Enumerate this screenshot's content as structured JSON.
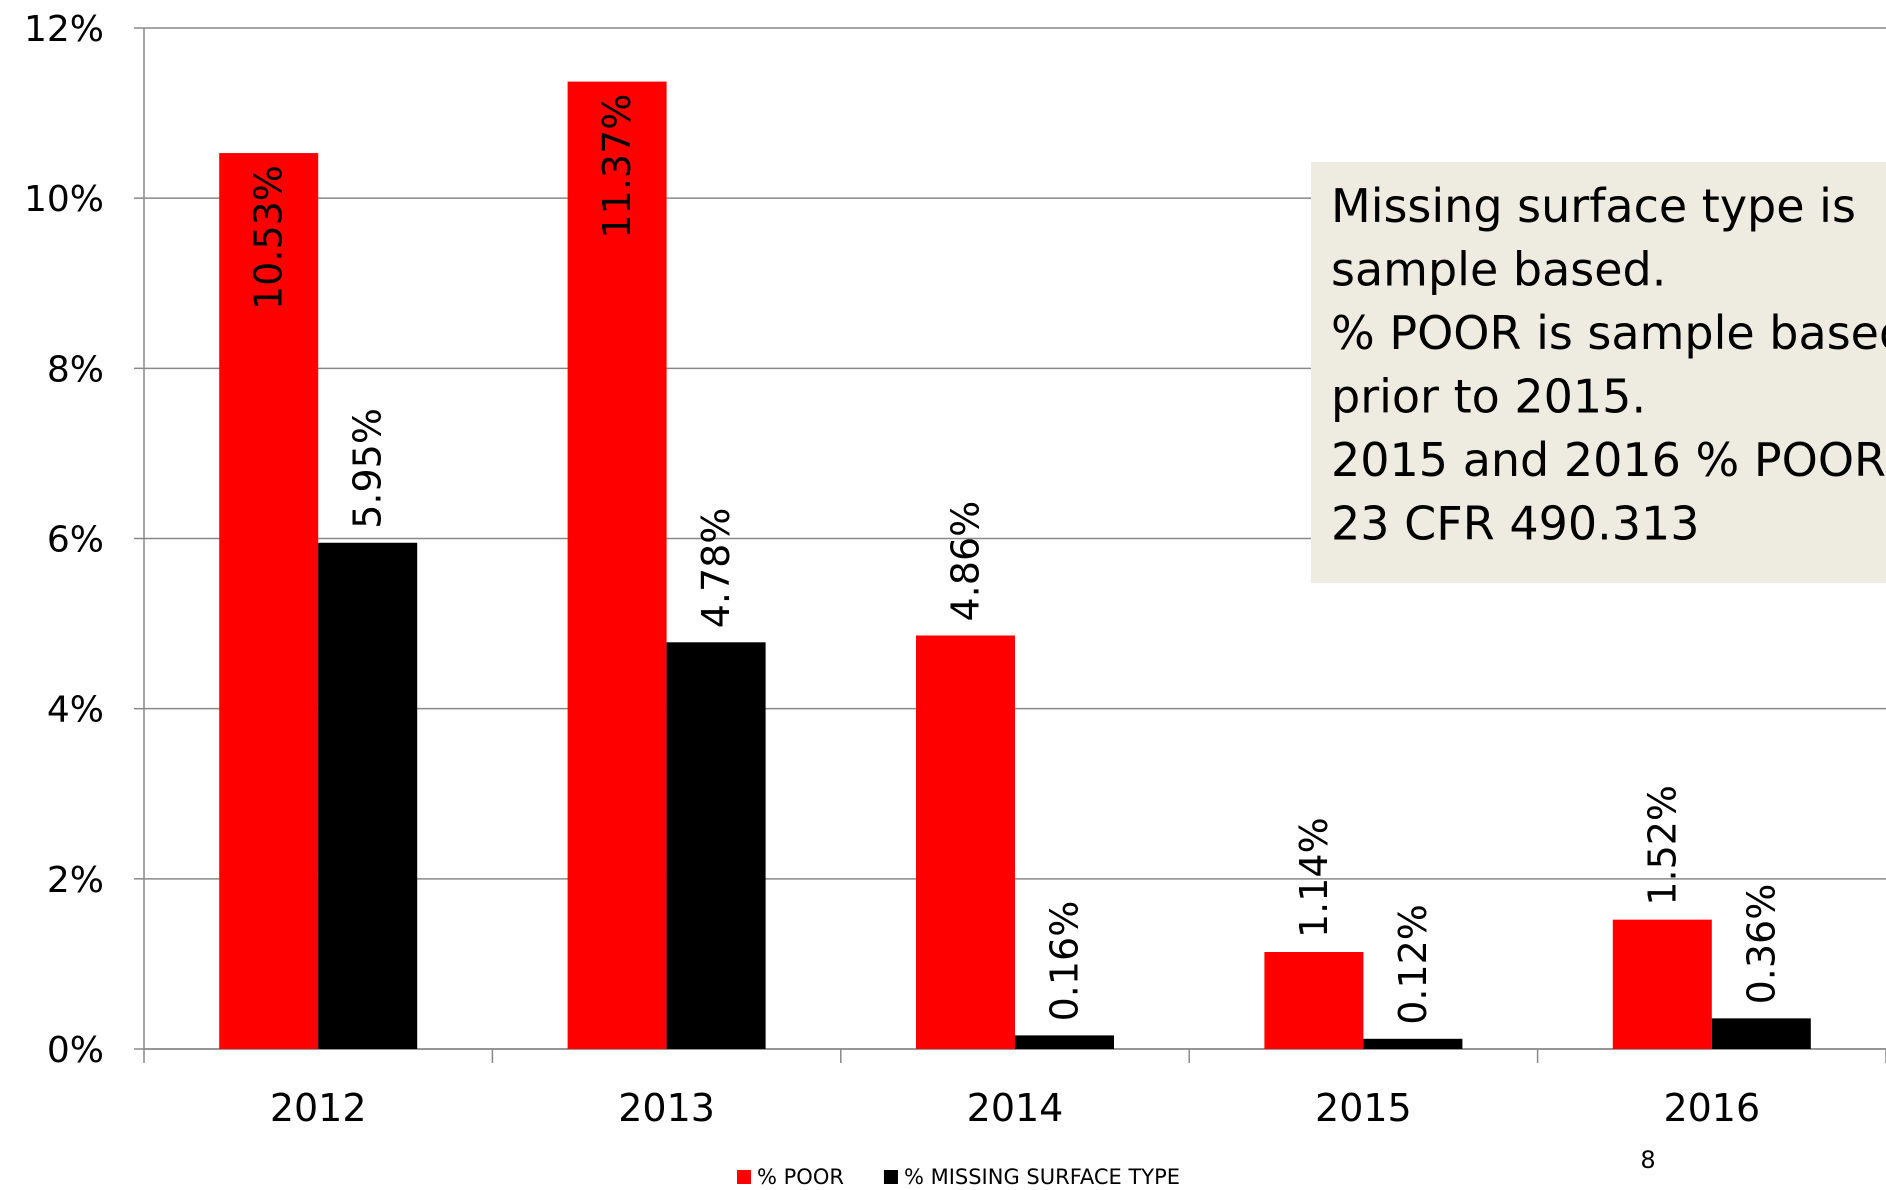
{
  "chart_data": {
    "type": "bar",
    "categories": [
      "2012",
      "2013",
      "2014",
      "2015",
      "2016"
    ],
    "series": [
      {
        "name": "% POOR",
        "color": "#ff0000",
        "values": [
          10.53,
          11.37,
          4.86,
          1.14,
          1.52
        ],
        "value_labels": [
          "10.53%",
          "11.37%",
          "4.86%",
          "1.14%",
          "1.52%"
        ]
      },
      {
        "name": "% MISSING SURFACE TYPE",
        "color": "#000000",
        "values": [
          5.95,
          4.78,
          0.16,
          0.12,
          0.36
        ],
        "value_labels": [
          "5.95%",
          "4.78%",
          "0.16%",
          "0.12%",
          "0.36%"
        ]
      }
    ],
    "ylim": [
      0,
      12
    ],
    "yticks": [
      {
        "value": 0,
        "label": "0%"
      },
      {
        "value": 2,
        "label": "2%"
      },
      {
        "value": 4,
        "label": "4%"
      },
      {
        "value": 6,
        "label": "6%"
      },
      {
        "value": 8,
        "label": "8%"
      },
      {
        "value": 10,
        "label": "10%"
      },
      {
        "value": 12,
        "label": "12%"
      }
    ],
    "grid": true,
    "legend": "bottom",
    "annotation": [
      "Missing surface type is",
      "sample based.",
      "% POOR is sample based",
      "prior to 2015.",
      "2015 and 2016 % POOR",
      "23 CFR 490.313"
    ],
    "page_number": "8"
  }
}
